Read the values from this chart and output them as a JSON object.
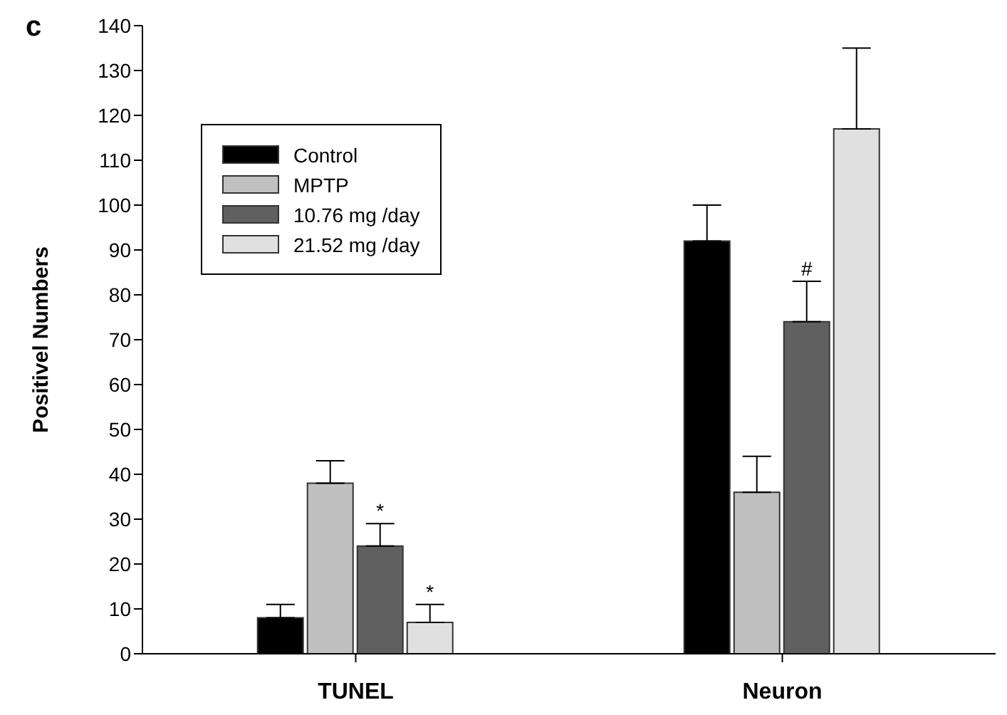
{
  "chart_data": {
    "type": "bar",
    "title": "c",
    "ylabel": "Positivel Numbers",
    "categories": [
      "TUNEL",
      "Neuron"
    ],
    "series": [
      {
        "name": "Control",
        "color": "#000000",
        "values": [
          8,
          92
        ],
        "errors": [
          [
            8,
            11
          ],
          [
            92,
            100
          ]
        ]
      },
      {
        "name": "MPTP",
        "color": "#c0c0c0",
        "values": [
          38,
          36
        ],
        "errors": [
          [
            38,
            43
          ],
          [
            36,
            44
          ]
        ]
      },
      {
        "name": "10.76 mg /day",
        "color": "#606060",
        "values": [
          24,
          74
        ],
        "errors": [
          [
            24,
            29
          ],
          [
            74,
            83
          ]
        ],
        "value_labels": [
          "*",
          "#"
        ]
      },
      {
        "name": "21.52 mg /day",
        "color": "#e0e0e0",
        "values": [
          7,
          117
        ],
        "errors": [
          [
            7,
            11
          ],
          [
            117,
            135
          ]
        ],
        "value_labels": [
          "*",
          null
        ]
      }
    ],
    "ylim": [
      0,
      140
    ],
    "yticks": [
      0,
      10,
      20,
      30,
      40,
      50,
      60,
      70,
      80,
      90,
      100,
      110,
      120,
      130,
      140
    ],
    "legend": "top left",
    "grid": false
  }
}
